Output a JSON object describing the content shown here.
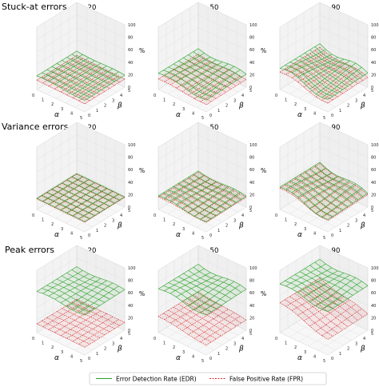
{
  "chart_data": {
    "type": "surface",
    "x_label": "α",
    "y_label": "β",
    "z_unit": "%",
    "x_ticks": [
      "0",
      "1",
      "2",
      "3",
      "4",
      "5"
    ],
    "y_ticks": [
      "0",
      "1",
      "2",
      "3",
      "4",
      "5"
    ],
    "z_ticks": [
      "0",
      "20",
      "40",
      "60",
      "80",
      "100"
    ],
    "zlim": [
      0,
      100
    ],
    "legend": [
      {
        "key": "edr",
        "label": "Error Detection Rate (EDR)",
        "color": "#2ca02c",
        "style": "solid"
      },
      {
        "key": "fpr",
        "label": "False Positive Rate (FPR)",
        "color": "#d62728",
        "style": "dashed"
      }
    ],
    "rows": [
      {
        "title": "Stuck-at errors",
        "panels": [
          {
            "title": "γ = 20",
            "edr": {
              "base": 22,
              "a_slope": -0.6,
              "b_slope": 0.0,
              "bump": 1
            },
            "fpr": {
              "base": 15,
              "a_slope": -0.4,
              "b_slope": 0.0,
              "bump": 0
            }
          },
          {
            "title": "γ = 50",
            "edr": {
              "base": 26,
              "a_slope": -1.2,
              "b_slope": 0.0,
              "bump": 3
            },
            "fpr": {
              "base": 17,
              "a_slope": -1.0,
              "b_slope": 0.0,
              "bump": 1
            }
          },
          {
            "title": "γ = 90",
            "edr": {
              "base": 34,
              "a_slope": -2.5,
              "b_slope": 0.0,
              "bump": 5
            },
            "fpr": {
              "base": 28,
              "a_slope": -2.6,
              "b_slope": 0.0,
              "bump": 3
            }
          }
        ]
      },
      {
        "title": "Variance errors",
        "panels": [
          {
            "title": "γ = 20",
            "edr": {
              "base": 18,
              "a_slope": -0.3,
              "b_slope": 0.0,
              "bump": 0
            },
            "fpr": {
              "base": 17,
              "a_slope": -0.3,
              "b_slope": 0.0,
              "bump": 0
            }
          },
          {
            "title": "γ = 50",
            "edr": {
              "base": 22,
              "a_slope": -1.0,
              "b_slope": 0.0,
              "bump": 2
            },
            "fpr": {
              "base": 20,
              "a_slope": -0.9,
              "b_slope": 0.0,
              "bump": 1
            }
          },
          {
            "title": "γ = 90",
            "edr": {
              "base": 36,
              "a_slope": -3.0,
              "b_slope": 0.0,
              "bump": 4
            },
            "fpr": {
              "base": 34,
              "a_slope": -3.0,
              "b_slope": 0.0,
              "bump": 3
            }
          }
        ]
      },
      {
        "title": "Peak errors",
        "panels": [
          {
            "title": "γ = 20",
            "edr": {
              "base": 66,
              "a_slope": -0.3,
              "b_slope": 0.0,
              "bump": 2
            },
            "fpr": {
              "base": 14,
              "a_slope": -0.3,
              "b_slope": 0.0,
              "bump": 0
            }
          },
          {
            "title": "γ = 50",
            "edr": {
              "base": 70,
              "a_slope": -1.0,
              "b_slope": 0.0,
              "bump": 3
            },
            "fpr": {
              "base": 26,
              "a_slope": -2.0,
              "b_slope": 0.0,
              "bump": 1
            }
          },
          {
            "title": "γ = 90",
            "edr": {
              "base": 78,
              "a_slope": -1.5,
              "b_slope": 0.0,
              "bump": 3
            },
            "fpr": {
              "base": 48,
              "a_slope": -4.5,
              "b_slope": 0.0,
              "bump": 2
            }
          }
        ]
      }
    ]
  }
}
